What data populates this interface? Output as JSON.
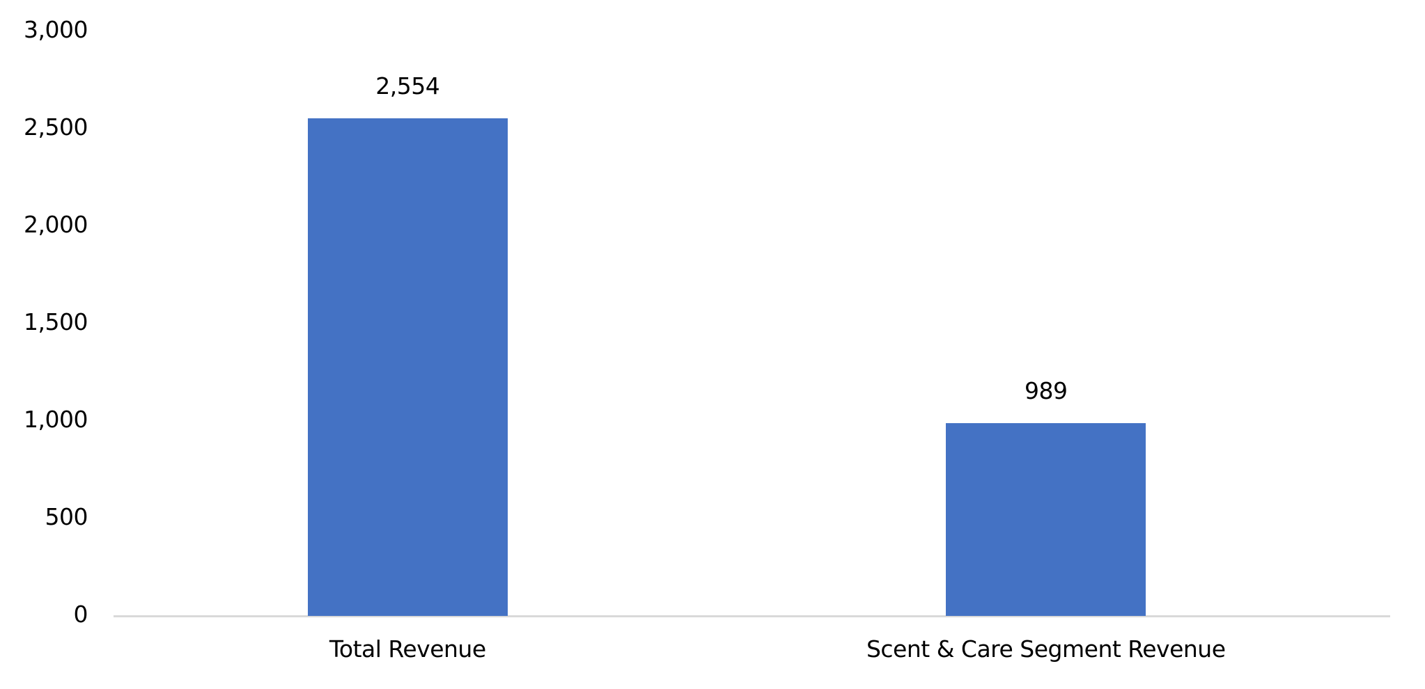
{
  "chart_data": {
    "type": "bar",
    "title": "",
    "xlabel": "",
    "ylabel": "",
    "categories": [
      "Total Revenue",
      "Scent & Care Segment Revenue"
    ],
    "values": [
      2554,
      989
    ],
    "data_labels": [
      "2,554",
      "989"
    ],
    "ylim": [
      0,
      3000
    ],
    "yticks": [
      0,
      500,
      1000,
      1500,
      2000,
      2500,
      3000
    ],
    "ytick_labels": [
      "0",
      "500",
      "1,000",
      "1,500",
      "2,000",
      "2,500",
      "3,000"
    ],
    "grid": false,
    "legend": null,
    "bar_color": "#4472C4",
    "axis_color": "#D9D9D9"
  }
}
